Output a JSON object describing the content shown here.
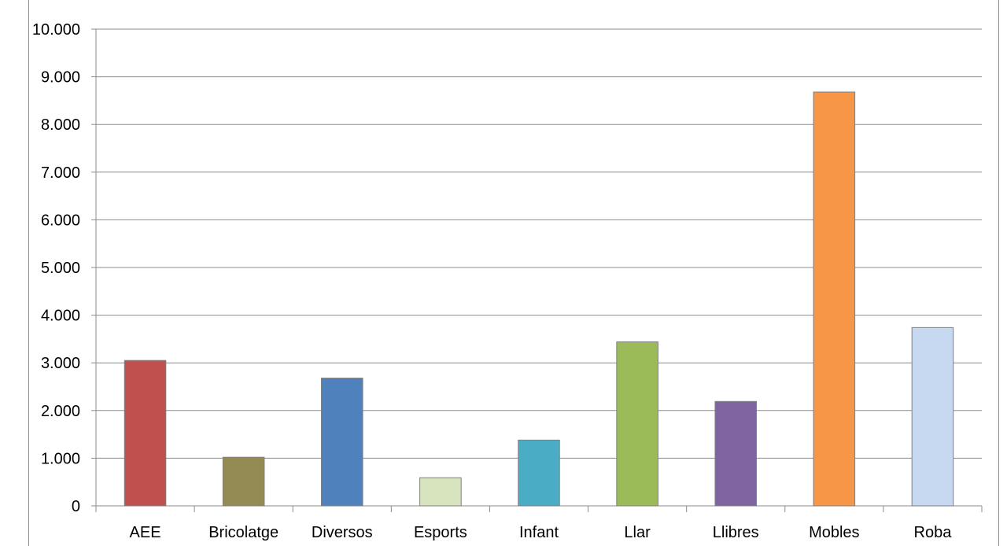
{
  "chart_data": {
    "type": "bar",
    "title": "",
    "xlabel": "",
    "ylabel": "",
    "categories": [
      "AEE",
      "Bricolatge",
      "Diversos",
      "Esports",
      "Infant",
      "Llar",
      "Llibres",
      "Mobles",
      "Roba"
    ],
    "values": [
      3050,
      1020,
      2680,
      590,
      1380,
      3440,
      2190,
      8680,
      3740
    ],
    "colors": [
      "#c0504d",
      "#948a54",
      "#4f81bd",
      "#d7e4bd",
      "#4bacc6",
      "#9bbb59",
      "#8064a2",
      "#f79646",
      "#c6d9f1"
    ],
    "ylim": [
      0,
      10000
    ],
    "yticks": [
      "0",
      "1.000",
      "2.000",
      "3.000",
      "4.000",
      "5.000",
      "6.000",
      "7.000",
      "8.000",
      "9.000",
      "10.000"
    ],
    "grid": true,
    "legend": "none"
  }
}
